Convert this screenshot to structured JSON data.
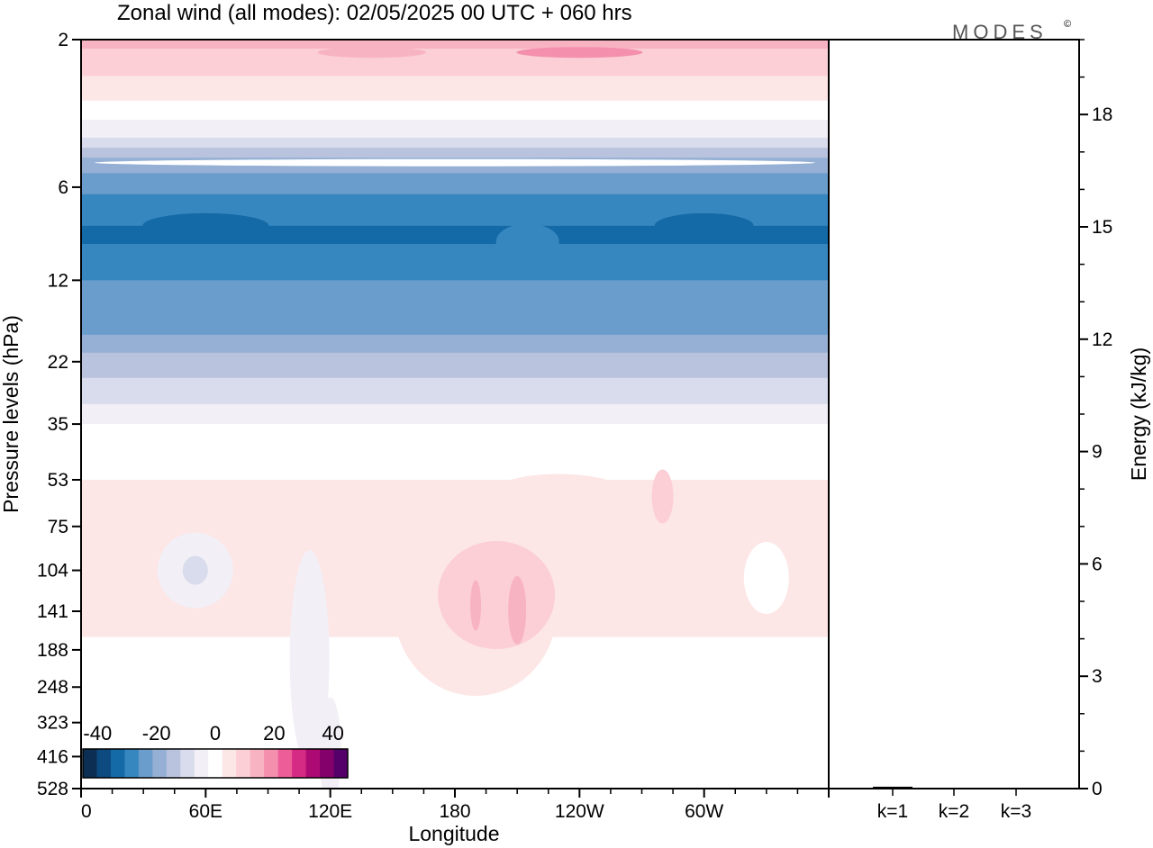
{
  "chart_data": [
    {
      "type": "heatmap",
      "title": "Zonal wind (all modes):  02/05/2025  00 UTC  + 060 hrs",
      "xlabel": "Longitude",
      "ylabel": "Pressure levels (hPa)",
      "x_ticks": [
        "0",
        "60E",
        "120E",
        "180",
        "120W",
        "60W"
      ],
      "y_ticks": [
        "2",
        "6",
        "12",
        "22",
        "35",
        "53",
        "75",
        "104",
        "141",
        "188",
        "248",
        "323",
        "416",
        "528"
      ],
      "y_scale": "log, reversed (pressure increases downward)",
      "colorbar": {
        "ticks": [
          "-40",
          "-20",
          "0",
          "20",
          "40"
        ],
        "range": [
          -45,
          45
        ],
        "step": 5,
        "colors": [
          "#0b2e52",
          "#0d4a80",
          "#136aa6",
          "#3686bf",
          "#6a9ccc",
          "#95b0d4",
          "#b9c3de",
          "#d9dcec",
          "#f2eff7",
          "#ffffff",
          "#fde6e6",
          "#fbcfd5",
          "#f8b3c3",
          "#f48fae",
          "#ed5d98",
          "#d62b84",
          "#ad0a73",
          "#84006a",
          "#55006a"
        ]
      },
      "zonal_profile_approx_ms": [
        {
          "level": 2,
          "u": 15
        },
        {
          "level": 3,
          "u": 5
        },
        {
          "level": 4,
          "u": -5
        },
        {
          "level": 5,
          "u": -20
        },
        {
          "level": 8,
          "u": -32
        },
        {
          "level": 12,
          "u": -25
        },
        {
          "level": 18,
          "u": -20
        },
        {
          "level": 22,
          "u": -12
        },
        {
          "level": 28,
          "u": -7
        },
        {
          "level": 35,
          "u": 1
        },
        {
          "level": 53,
          "u": 5
        },
        {
          "level": 75,
          "u": 5
        },
        {
          "level": 104,
          "u": 7
        },
        {
          "level": 141,
          "u": 6
        },
        {
          "level": 188,
          "u": 4
        },
        {
          "level": 248,
          "u": 2
        },
        {
          "level": 323,
          "u": 1
        },
        {
          "level": 416,
          "u": 0
        },
        {
          "level": 528,
          "u": 0
        }
      ],
      "features": [
        "easterly jet core < -30 m/s near 6–12 hPa",
        "westerly maximum ~15–20 m/s near 180–150W at 104–188 hPa",
        "weak easterlies ~ -5 m/s near 45E–60E around 104 hPa"
      ]
    },
    {
      "type": "bar",
      "categories": [
        "k=1",
        "k=2",
        "k=3"
      ],
      "values": [
        0.05,
        0.02,
        0.02
      ],
      "ylabel": "Energy (kJ/kg)",
      "y_ticks": [
        "0",
        "3",
        "6",
        "9",
        "12",
        "15",
        "18"
      ],
      "ylim": [
        0,
        20
      ]
    }
  ],
  "branding": {
    "logo_text": "MODES",
    "logo_mark": "©"
  }
}
